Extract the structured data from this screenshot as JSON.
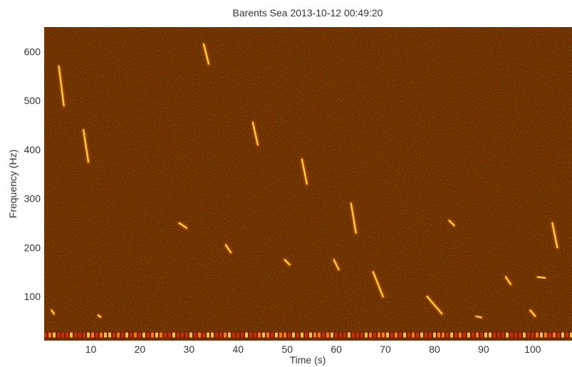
{
  "chart_data": {
    "type": "heatmap",
    "subtype": "spectrogram",
    "title": "Barents Sea 2013-10-12 00:49:20",
    "xlabel": "Time (s)",
    "ylabel": "Frequency (Hz)",
    "xlim": [
      0.5,
      108
    ],
    "ylim": [
      10,
      650
    ],
    "xticks": [
      10,
      20,
      30,
      40,
      50,
      60,
      70,
      80,
      90,
      100
    ],
    "yticks": [
      100,
      200,
      300,
      400,
      500,
      600
    ],
    "colormap": "black-red-orange-yellow (hot)",
    "background_color": "#1a0500",
    "grid": false,
    "low_frequency_band": {
      "freq_hz": [
        15,
        28
      ],
      "time_s": [
        0.5,
        108
      ]
    },
    "calls": [
      {
        "t_start": 3.5,
        "t_end": 4.5,
        "f_start": 570,
        "f_end": 490
      },
      {
        "t_start": 8.5,
        "t_end": 9.5,
        "f_start": 440,
        "f_end": 375
      },
      {
        "t_start": 33.0,
        "t_end": 34.0,
        "f_start": 615,
        "f_end": 575
      },
      {
        "t_start": 43.0,
        "t_end": 44.0,
        "f_start": 455,
        "f_end": 410
      },
      {
        "t_start": 53.0,
        "t_end": 54.0,
        "f_start": 380,
        "f_end": 330
      },
      {
        "t_start": 63.0,
        "t_end": 64.0,
        "f_start": 290,
        "f_end": 230
      },
      {
        "t_start": 28.0,
        "t_end": 29.5,
        "f_start": 250,
        "f_end": 240
      },
      {
        "t_start": 37.5,
        "t_end": 38.5,
        "f_start": 205,
        "f_end": 190
      },
      {
        "t_start": 49.5,
        "t_end": 50.5,
        "f_start": 175,
        "f_end": 165
      },
      {
        "t_start": 59.5,
        "t_end": 60.5,
        "f_start": 175,
        "f_end": 155
      },
      {
        "t_start": 67.5,
        "t_end": 69.5,
        "f_start": 150,
        "f_end": 100
      },
      {
        "t_start": 78.5,
        "t_end": 81.5,
        "f_start": 100,
        "f_end": 65
      },
      {
        "t_start": 83.0,
        "t_end": 84.0,
        "f_start": 255,
        "f_end": 245
      },
      {
        "t_start": 88.5,
        "t_end": 89.5,
        "f_start": 60,
        "f_end": 57
      },
      {
        "t_start": 94.5,
        "t_end": 95.5,
        "f_start": 140,
        "f_end": 125
      },
      {
        "t_start": 99.5,
        "t_end": 100.5,
        "f_start": 72,
        "f_end": 60
      },
      {
        "t_start": 101.0,
        "t_end": 102.5,
        "f_start": 140,
        "f_end": 138
      },
      {
        "t_start": 104.0,
        "t_end": 105.0,
        "f_start": 250,
        "f_end": 200
      },
      {
        "t_start": 2.0,
        "t_end": 2.5,
        "f_start": 72,
        "f_end": 65
      },
      {
        "t_start": 11.5,
        "t_end": 12.0,
        "f_start": 62,
        "f_end": 58
      }
    ]
  }
}
